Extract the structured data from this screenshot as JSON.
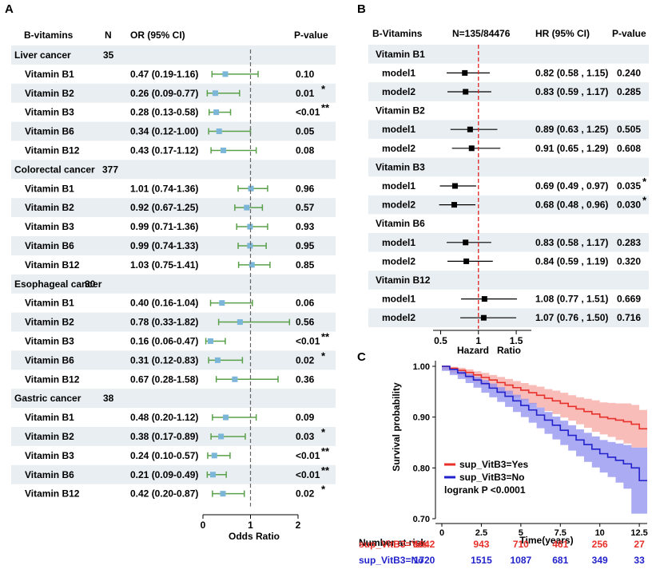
{
  "colors": {
    "stripe": "#e8eef1",
    "ci_a": "#5aa04a",
    "pt_a": "#7bb6d8",
    "dash_a": "#666666",
    "dash_b": "#e02020",
    "yes": "#e8302a",
    "yes_band": "#f6a7a2",
    "no": "#2222cc",
    "no_band": "#8f8ff0",
    "black": "#000000"
  },
  "panel_a": {
    "letter": "A",
    "headers": {
      "vitamin": "B-vitamins",
      "n": "N",
      "or": "OR (95% CI)",
      "p": "P-value"
    },
    "axis_label": "Odds Ratio",
    "xlim": [
      0,
      2
    ],
    "ticks": [
      "0",
      "1",
      "2"
    ],
    "ref_line": 1,
    "groups": [
      {
        "name": "Liver cancer",
        "n": "35",
        "rows": [
          {
            "label": "Vitamin B1",
            "est": 0.47,
            "lo": 0.19,
            "hi": 1.16,
            "ci": "0.47 (0.19-1.16)",
            "p": "0.10",
            "sig": ""
          },
          {
            "label": "Vitamin B2",
            "est": 0.26,
            "lo": 0.09,
            "hi": 0.77,
            "ci": "0.26 (0.09-0.77)",
            "p": "0.01",
            "sig": "*"
          },
          {
            "label": "Vitamin B3",
            "est": 0.28,
            "lo": 0.13,
            "hi": 0.58,
            "ci": "0.28 (0.13-0.58)",
            "p": "<0.01",
            "sig": "**"
          },
          {
            "label": "Vitamin B6",
            "est": 0.34,
            "lo": 0.12,
            "hi": 1.0,
            "ci": "0.34 (0.12-1.00)",
            "p": "0.05",
            "sig": ""
          },
          {
            "label": "Vitamin B12",
            "est": 0.43,
            "lo": 0.17,
            "hi": 1.12,
            "ci": "0.43 (0.17-1.12)",
            "p": "0.08",
            "sig": ""
          }
        ]
      },
      {
        "name": "Colorectal cancer",
        "n": "377",
        "rows": [
          {
            "label": "Vitamin B1",
            "est": 1.01,
            "lo": 0.74,
            "hi": 1.36,
            "ci": "1.01 (0.74-1.36)",
            "p": "0.96",
            "sig": ""
          },
          {
            "label": "Vitamin B2",
            "est": 0.92,
            "lo": 0.67,
            "hi": 1.25,
            "ci": "0.92 (0.67-1.25)",
            "p": "0.57",
            "sig": ""
          },
          {
            "label": "Vitamin B3",
            "est": 0.99,
            "lo": 0.71,
            "hi": 1.36,
            "ci": "0.99 (0.71-1.36)",
            "p": "0.93",
            "sig": ""
          },
          {
            "label": "Vitamin B6",
            "est": 0.99,
            "lo": 0.74,
            "hi": 1.33,
            "ci": "0.99 (0.74-1.33)",
            "p": "0.95",
            "sig": ""
          },
          {
            "label": "Vitamin B12",
            "est": 1.03,
            "lo": 0.75,
            "hi": 1.41,
            "ci": "1.03 (0.75-1.41)",
            "p": "0.85",
            "sig": ""
          }
        ]
      },
      {
        "name": "Esophageal cancer",
        "n": "30",
        "rows": [
          {
            "label": "Vitamin B1",
            "est": 0.4,
            "lo": 0.16,
            "hi": 1.04,
            "ci": "0.40 (0.16-1.04)",
            "p": "0.06",
            "sig": ""
          },
          {
            "label": "Vitamin B2",
            "est": 0.78,
            "lo": 0.33,
            "hi": 1.82,
            "ci": "0.78 (0.33-1.82)",
            "p": "0.56",
            "sig": ""
          },
          {
            "label": "Vitamin B3",
            "est": 0.16,
            "lo": 0.06,
            "hi": 0.47,
            "ci": "0.16 (0.06-0.47)",
            "p": "<0.01",
            "sig": "**"
          },
          {
            "label": "Vitamin B6",
            "est": 0.31,
            "lo": 0.12,
            "hi": 0.83,
            "ci": "0.31 (0.12-0.83)",
            "p": "0.02",
            "sig": "*"
          },
          {
            "label": "Vitamin B12",
            "est": 0.67,
            "lo": 0.28,
            "hi": 1.58,
            "ci": "0.67 (0.28-1.58)",
            "p": "0.36",
            "sig": ""
          }
        ]
      },
      {
        "name": "Gastric cancer",
        "n": "38",
        "rows": [
          {
            "label": "Vitamin B1",
            "est": 0.48,
            "lo": 0.2,
            "hi": 1.12,
            "ci": "0.48 (0.20-1.12)",
            "p": "0.09",
            "sig": ""
          },
          {
            "label": "Vitamin B2",
            "est": 0.38,
            "lo": 0.17,
            "hi": 0.89,
            "ci": "0.38 (0.17-0.89)",
            "p": "0.03",
            "sig": "*"
          },
          {
            "label": "Vitamin B3",
            "est": 0.24,
            "lo": 0.1,
            "hi": 0.57,
            "ci": "0.24 (0.10-0.57)",
            "p": "<0.01",
            "sig": "**"
          },
          {
            "label": "Vitamin B6",
            "est": 0.21,
            "lo": 0.09,
            "hi": 0.49,
            "ci": "0.21 (0.09-0.49)",
            "p": "<0.01",
            "sig": "**"
          },
          {
            "label": "Vitamin B12",
            "est": 0.42,
            "lo": 0.2,
            "hi": 0.87,
            "ci": "0.42 (0.20-0.87)",
            "p": "0.02",
            "sig": "*"
          }
        ]
      }
    ]
  },
  "panel_b": {
    "letter": "B",
    "headers": {
      "vitamin": "B-Vitamins",
      "n": "N=135/84476",
      "hr": "HR (95% CI)",
      "p": "P-value"
    },
    "axis_label_left": "Hazard",
    "axis_label_right": "Ratio",
    "xlim": [
      0.4,
      1.7
    ],
    "ticks": [
      "0.5",
      "1",
      "1.5"
    ],
    "ref_line": 1,
    "groups": [
      {
        "name": "Vitamin B1",
        "rows": [
          {
            "label": "model1",
            "est": 0.82,
            "lo": 0.58,
            "hi": 1.15,
            "ci": "0.82 (0.58 , 1.15)",
            "p": "0.240",
            "sig": ""
          },
          {
            "label": "model2",
            "est": 0.83,
            "lo": 0.59,
            "hi": 1.17,
            "ci": "0.83 (0.59 , 1.17)",
            "p": "0.285",
            "sig": ""
          }
        ]
      },
      {
        "name": "Vitamin B2",
        "rows": [
          {
            "label": "model1",
            "est": 0.89,
            "lo": 0.63,
            "hi": 1.25,
            "ci": "0.89 (0.63 , 1.25)",
            "p": "0.505",
            "sig": ""
          },
          {
            "label": "model2",
            "est": 0.91,
            "lo": 0.65,
            "hi": 1.29,
            "ci": "0.91 (0.65 , 1.29)",
            "p": "0.608",
            "sig": ""
          }
        ]
      },
      {
        "name": "Vitamin B3",
        "rows": [
          {
            "label": "model1",
            "est": 0.69,
            "lo": 0.49,
            "hi": 0.97,
            "ci": "0.69 (0.49 , 0.97)",
            "p": "0.035",
            "sig": "*"
          },
          {
            "label": "model2",
            "est": 0.68,
            "lo": 0.48,
            "hi": 0.96,
            "ci": "0.68 (0.48 , 0.96)",
            "p": "0.030",
            "sig": "*"
          }
        ]
      },
      {
        "name": "Vitamin B6",
        "rows": [
          {
            "label": "model1",
            "est": 0.83,
            "lo": 0.58,
            "hi": 1.17,
            "ci": "0.83 (0.58 , 1.17)",
            "p": "0.283",
            "sig": ""
          },
          {
            "label": "model2",
            "est": 0.84,
            "lo": 0.59,
            "hi": 1.19,
            "ci": "0.84 (0.59 , 1.19)",
            "p": "0.320",
            "sig": ""
          }
        ]
      },
      {
        "name": "Vitamin B12",
        "rows": [
          {
            "label": "model1",
            "est": 1.08,
            "lo": 0.77,
            "hi": 1.51,
            "ci": "1.08 (0.77 , 1.51)",
            "p": "0.669",
            "sig": ""
          },
          {
            "label": "model2",
            "est": 1.07,
            "lo": 0.76,
            "hi": 1.5,
            "ci": "1.07 (0.76 , 1.50)",
            "p": "0.716",
            "sig": ""
          }
        ]
      }
    ]
  },
  "panel_c": {
    "letter": "C",
    "ylabel": "Survival probability",
    "xlabel": "Time(years)",
    "xlim": [
      0,
      13
    ],
    "ylim": [
      0.7,
      1.0
    ],
    "xticks": [
      0,
      2.5,
      5,
      7.5,
      10,
      12.5
    ],
    "xtick_labels": [
      "0",
      "2.5",
      "5",
      "7.5",
      "10",
      "12.5"
    ],
    "yticks": [
      0.7,
      0.8,
      0.9,
      1.0
    ],
    "ytick_labels": [
      "0.70",
      "0.80",
      "0.90",
      "1.00"
    ],
    "legend": [
      "sup_VitB3=Yes",
      "sup_VitB3=No"
    ],
    "logrank": "logrank P <0.0001",
    "risk_title": "Number at risk",
    "risk_rows": [
      {
        "label": "sup_VitB3=Yes",
        "values": [
          "1042",
          "943",
          "710",
          "461",
          "256",
          "27"
        ]
      },
      {
        "label": "sup_VitB3=No",
        "values": [
          "1720",
          "1515",
          "1087",
          "681",
          "349",
          "33"
        ]
      }
    ]
  },
  "chart_data": [
    {
      "type": "forest",
      "title": "",
      "xlabel": "Odds Ratio",
      "xlim": [
        0,
        2
      ],
      "series": [
        {
          "name": "OR (95% CI)",
          "values": "see panel_a.groups"
        }
      ]
    },
    {
      "type": "forest",
      "title": "",
      "xlabel": "Hazard Ratio",
      "xlim": [
        0.4,
        1.7
      ],
      "series": [
        {
          "name": "HR (95% CI)",
          "values": "see panel_b.groups"
        }
      ]
    },
    {
      "type": "line",
      "title": "",
      "xlabel": "Time(years)",
      "ylabel": "Survival probability",
      "xlim": [
        0,
        13
      ],
      "ylim": [
        0.7,
        1.0
      ],
      "series": [
        {
          "name": "sup_VitB3=Yes",
          "x": [
            0,
            0.5,
            1,
            1.5,
            2,
            2.5,
            3,
            3.5,
            4,
            4.5,
            5,
            5.5,
            6,
            6.5,
            7,
            7.5,
            8,
            8.5,
            9,
            9.5,
            10,
            10.5,
            11,
            11.5,
            12,
            12.5,
            13
          ],
          "y": [
            1.0,
            0.996,
            0.992,
            0.988,
            0.983,
            0.978,
            0.973,
            0.968,
            0.963,
            0.958,
            0.953,
            0.948,
            0.943,
            0.937,
            0.932,
            0.927,
            0.921,
            0.916,
            0.911,
            0.906,
            0.9,
            0.897,
            0.894,
            0.891,
            0.886,
            0.877,
            0.877
          ],
          "ci_lo": [
            1.0,
            0.993,
            0.987,
            0.982,
            0.976,
            0.969,
            0.963,
            0.957,
            0.951,
            0.945,
            0.939,
            0.933,
            0.926,
            0.919,
            0.912,
            0.906,
            0.899,
            0.893,
            0.886,
            0.879,
            0.871,
            0.866,
            0.861,
            0.855,
            0.848,
            0.84,
            0.84
          ],
          "ci_hi": [
            1.0,
            0.999,
            0.997,
            0.994,
            0.99,
            0.987,
            0.983,
            0.979,
            0.975,
            0.971,
            0.967,
            0.963,
            0.96,
            0.955,
            0.952,
            0.948,
            0.943,
            0.939,
            0.936,
            0.933,
            0.929,
            0.928,
            0.927,
            0.927,
            0.924,
            0.914,
            0.914
          ]
        },
        {
          "name": "sup_VitB3=No",
          "x": [
            0,
            0.5,
            1,
            1.5,
            2,
            2.5,
            3,
            3.5,
            4,
            4.5,
            5,
            5.5,
            6,
            6.5,
            7,
            7.5,
            8,
            8.5,
            9,
            9.5,
            10,
            10.5,
            11,
            11.5,
            12,
            12.5,
            13
          ],
          "y": [
            1.0,
            0.994,
            0.987,
            0.98,
            0.973,
            0.966,
            0.957,
            0.949,
            0.941,
            0.932,
            0.923,
            0.914,
            0.904,
            0.894,
            0.884,
            0.874,
            0.864,
            0.855,
            0.846,
            0.837,
            0.828,
            0.821,
            0.815,
            0.808,
            0.8,
            0.775,
            0.775
          ],
          "ci_lo": [
            1.0,
            0.991,
            0.983,
            0.975,
            0.967,
            0.958,
            0.948,
            0.939,
            0.93,
            0.92,
            0.91,
            0.9,
            0.889,
            0.878,
            0.867,
            0.856,
            0.845,
            0.834,
            0.823,
            0.812,
            0.801,
            0.791,
            0.782,
            0.771,
            0.759,
            0.71,
            0.71
          ],
          "ci_hi": [
            1.0,
            0.997,
            0.991,
            0.985,
            0.979,
            0.973,
            0.966,
            0.959,
            0.952,
            0.944,
            0.936,
            0.928,
            0.919,
            0.91,
            0.901,
            0.893,
            0.884,
            0.876,
            0.869,
            0.862,
            0.855,
            0.851,
            0.848,
            0.845,
            0.84,
            0.84,
            0.84
          ]
        }
      ]
    }
  ]
}
